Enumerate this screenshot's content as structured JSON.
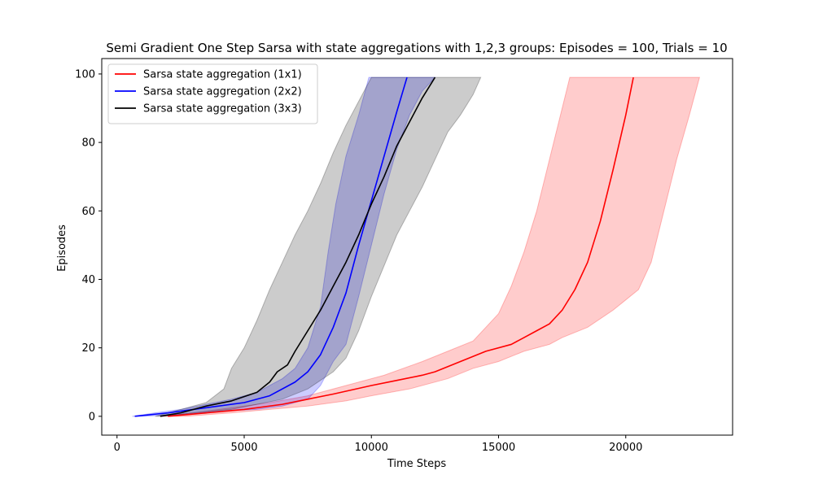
{
  "chart_data": {
    "type": "line",
    "title": "Semi Gradient One Step Sarsa with state aggregations with 1,2,3 groups: Episodes = 100, Trials = 10",
    "xlabel": "Time Steps",
    "ylabel": "Episodes",
    "xlim": [
      -600,
      24200
    ],
    "ylim": [
      -5.5,
      104.5
    ],
    "xticks": [
      0,
      5000,
      10000,
      15000,
      20000
    ],
    "yticks": [
      0,
      20,
      40,
      60,
      80,
      100
    ],
    "grid": false,
    "legend_position": "top-left",
    "series": [
      {
        "name": "Sarsa state aggregation (1x1)",
        "color": "#ff0000",
        "points": [
          [
            2000,
            0
          ],
          [
            3500,
            1
          ],
          [
            5000,
            2
          ],
          [
            6500,
            3.5
          ],
          [
            7500,
            5
          ],
          [
            8500,
            6.5
          ],
          [
            10000,
            9
          ],
          [
            11000,
            10.5
          ],
          [
            12000,
            12
          ],
          [
            12500,
            13
          ],
          [
            13500,
            16
          ],
          [
            14500,
            19
          ],
          [
            15500,
            21
          ],
          [
            16000,
            23
          ],
          [
            16500,
            25
          ],
          [
            17000,
            27
          ],
          [
            17500,
            31
          ],
          [
            18000,
            37
          ],
          [
            18500,
            45
          ],
          [
            19000,
            57
          ],
          [
            19500,
            72
          ],
          [
            20000,
            88
          ],
          [
            20300,
            99
          ]
        ],
        "lower": [
          [
            2700,
            0
          ],
          [
            4500,
            1
          ],
          [
            6000,
            2
          ],
          [
            7500,
            3
          ],
          [
            9000,
            4.5
          ],
          [
            10000,
            6
          ],
          [
            11500,
            8
          ],
          [
            13000,
            11
          ],
          [
            14000,
            14
          ],
          [
            15000,
            16
          ],
          [
            16000,
            19
          ],
          [
            17000,
            21
          ],
          [
            17500,
            23
          ],
          [
            18500,
            26
          ],
          [
            19500,
            31
          ],
          [
            20500,
            37
          ],
          [
            21000,
            45
          ],
          [
            21500,
            60
          ],
          [
            22000,
            75
          ],
          [
            22500,
            88
          ],
          [
            22900,
            99
          ]
        ],
        "upper": [
          [
            1700,
            0
          ],
          [
            3000,
            1
          ],
          [
            4500,
            2.5
          ],
          [
            6000,
            4
          ],
          [
            7500,
            6
          ],
          [
            9000,
            9
          ],
          [
            10500,
            12
          ],
          [
            12000,
            16
          ],
          [
            13000,
            19
          ],
          [
            14000,
            22
          ],
          [
            14500,
            26
          ],
          [
            15000,
            30
          ],
          [
            15500,
            38
          ],
          [
            16000,
            48
          ],
          [
            16500,
            60
          ],
          [
            17000,
            75
          ],
          [
            17500,
            90
          ],
          [
            17800,
            99
          ]
        ]
      },
      {
        "name": "Sarsa state aggregation (2x2)",
        "color": "#0000ff",
        "points": [
          [
            700,
            0
          ],
          [
            2000,
            1
          ],
          [
            3500,
            2.5
          ],
          [
            5000,
            4
          ],
          [
            6000,
            6
          ],
          [
            7000,
            10
          ],
          [
            7500,
            13
          ],
          [
            8000,
            18
          ],
          [
            8500,
            26
          ],
          [
            9000,
            36
          ],
          [
            9500,
            50
          ],
          [
            10000,
            63
          ],
          [
            10500,
            76
          ],
          [
            11000,
            89
          ],
          [
            11400,
            99
          ]
        ],
        "lower": [
          [
            900,
            0
          ],
          [
            2500,
            0.5
          ],
          [
            4000,
            1.5
          ],
          [
            5500,
            2
          ],
          [
            6500,
            3
          ],
          [
            7500,
            5
          ],
          [
            8000,
            9
          ],
          [
            8500,
            16
          ],
          [
            9000,
            21
          ],
          [
            9500,
            35
          ],
          [
            10000,
            50
          ],
          [
            10500,
            65
          ],
          [
            11000,
            78
          ],
          [
            11500,
            88
          ],
          [
            12000,
            95
          ],
          [
            12500,
            99
          ]
        ],
        "upper": [
          [
            600,
            0
          ],
          [
            1500,
            1
          ],
          [
            2500,
            2
          ],
          [
            3500,
            3.5
          ],
          [
            4500,
            5
          ],
          [
            5500,
            7
          ],
          [
            6500,
            11
          ],
          [
            7000,
            14
          ],
          [
            7500,
            20
          ],
          [
            8000,
            32
          ],
          [
            8300,
            48
          ],
          [
            8600,
            62
          ],
          [
            9000,
            76
          ],
          [
            9500,
            88
          ],
          [
            9900,
            99
          ]
        ]
      },
      {
        "name": "Sarsa state aggregation (3x3)",
        "color": "#000000",
        "points": [
          [
            1700,
            0
          ],
          [
            2500,
            1
          ],
          [
            3500,
            3
          ],
          [
            4500,
            4.5
          ],
          [
            5500,
            7
          ],
          [
            6000,
            10
          ],
          [
            6300,
            13
          ],
          [
            6700,
            15
          ],
          [
            7000,
            19
          ],
          [
            7500,
            25
          ],
          [
            8000,
            31
          ],
          [
            8500,
            38
          ],
          [
            9000,
            45
          ],
          [
            9500,
            53
          ],
          [
            10000,
            62
          ],
          [
            10500,
            70
          ],
          [
            11000,
            79
          ],
          [
            11500,
            86
          ],
          [
            12000,
            93
          ],
          [
            12500,
            99
          ]
        ],
        "lower": [
          [
            1800,
            0
          ],
          [
            3000,
            1
          ],
          [
            4500,
            2
          ],
          [
            5500,
            3.5
          ],
          [
            6500,
            5
          ],
          [
            7500,
            8
          ],
          [
            8500,
            13
          ],
          [
            9000,
            17
          ],
          [
            9500,
            25
          ],
          [
            10000,
            35
          ],
          [
            10500,
            44
          ],
          [
            11000,
            53
          ],
          [
            11500,
            60
          ],
          [
            12000,
            67
          ],
          [
            12500,
            75
          ],
          [
            13000,
            83
          ],
          [
            13500,
            88
          ],
          [
            14000,
            94
          ],
          [
            14300,
            99
          ]
        ],
        "upper": [
          [
            1500,
            0
          ],
          [
            2500,
            2
          ],
          [
            3500,
            4
          ],
          [
            4200,
            8
          ],
          [
            4500,
            14
          ],
          [
            5000,
            20
          ],
          [
            5500,
            28
          ],
          [
            6000,
            37
          ],
          [
            6500,
            45
          ],
          [
            7000,
            53
          ],
          [
            7500,
            60
          ],
          [
            8000,
            68
          ],
          [
            8500,
            77
          ],
          [
            9000,
            85
          ],
          [
            9500,
            92
          ],
          [
            10000,
            99
          ]
        ]
      }
    ]
  }
}
